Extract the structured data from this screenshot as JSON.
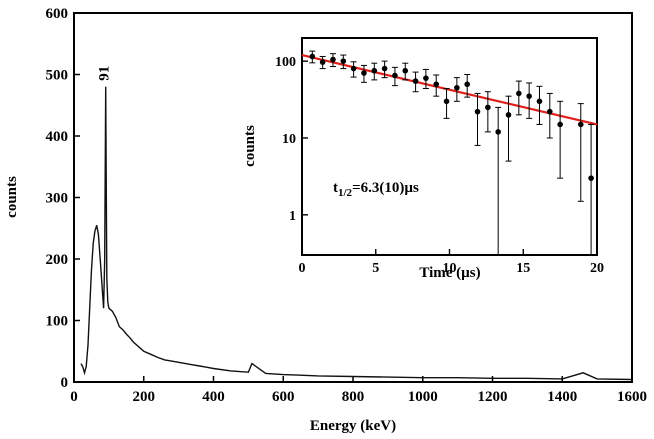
{
  "chart_data": [
    {
      "type": "line",
      "title": "",
      "xlabel": "Energy (keV)",
      "ylabel": "counts",
      "xlim": [
        0,
        1600
      ],
      "ylim": [
        0,
        600
      ],
      "x_ticks": [
        "0",
        "200",
        "400",
        "600",
        "800",
        "1000",
        "1200",
        "1400",
        "1600"
      ],
      "y_ticks": [
        "0",
        "100",
        "200",
        "300",
        "400",
        "500",
        "600"
      ],
      "grid": false,
      "annotations": [
        {
          "text": "91",
          "x": 91,
          "y": 480
        }
      ],
      "series": [
        {
          "x": [
            20,
            25,
            30,
            35,
            40,
            45,
            50,
            55,
            60,
            65,
            70,
            75,
            80,
            85,
            88,
            91,
            94,
            97,
            100,
            110,
            120,
            130,
            140,
            150,
            160,
            170,
            180,
            190,
            200,
            220,
            240,
            260,
            280,
            300,
            320,
            340,
            360,
            380,
            400,
            450,
            500,
            510,
            550,
            600,
            650,
            700,
            800,
            900,
            1000,
            1100,
            1200,
            1300,
            1400,
            1460,
            1500,
            1600
          ],
          "y": [
            30,
            25,
            15,
            25,
            60,
            120,
            180,
            225,
            245,
            255,
            240,
            200,
            160,
            120,
            200,
            480,
            170,
            130,
            120,
            115,
            105,
            90,
            85,
            78,
            72,
            65,
            60,
            55,
            50,
            45,
            40,
            36,
            34,
            32,
            30,
            28,
            26,
            24,
            22,
            18,
            16,
            30,
            14,
            12,
            11,
            10,
            9,
            8,
            7,
            7,
            6,
            6,
            5,
            15,
            5,
            4
          ]
        }
      ]
    },
    {
      "type": "scatter",
      "title": "",
      "xlabel": "Time (µs)",
      "ylabel": "counts",
      "xlim": [
        0,
        20
      ],
      "ylim": [
        0.3,
        200
      ],
      "yscale": "log",
      "x_ticks": [
        "0",
        "5",
        "10",
        "15",
        "20"
      ],
      "y_ticks": [
        "1",
        "10",
        "100"
      ],
      "annotation": "t",
      "annotation_sub": "1/2",
      "annotation_rest": "=6.3(10)µs",
      "fit_line": {
        "x": [
          0,
          20
        ],
        "y": [
          120,
          15
        ],
        "color": "#e0201b"
      },
      "points": [
        {
          "x": 0.7,
          "y": 115,
          "lo": 95,
          "hi": 135
        },
        {
          "x": 1.4,
          "y": 97,
          "lo": 80,
          "hi": 115
        },
        {
          "x": 2.1,
          "y": 105,
          "lo": 85,
          "hi": 125
        },
        {
          "x": 2.8,
          "y": 100,
          "lo": 80,
          "hi": 120
        },
        {
          "x": 3.5,
          "y": 80,
          "lo": 62,
          "hi": 98
        },
        {
          "x": 4.2,
          "y": 70,
          "lo": 53,
          "hi": 88
        },
        {
          "x": 4.9,
          "y": 75,
          "lo": 57,
          "hi": 94
        },
        {
          "x": 5.6,
          "y": 80,
          "lo": 61,
          "hi": 100
        },
        {
          "x": 6.3,
          "y": 65,
          "lo": 48,
          "hi": 83
        },
        {
          "x": 7.0,
          "y": 75,
          "lo": 57,
          "hi": 94
        },
        {
          "x": 7.7,
          "y": 55,
          "lo": 40,
          "hi": 72
        },
        {
          "x": 8.4,
          "y": 60,
          "lo": 44,
          "hi": 78
        },
        {
          "x": 9.1,
          "y": 50,
          "lo": 35,
          "hi": 66
        },
        {
          "x": 9.8,
          "y": 30,
          "lo": 18,
          "hi": 44
        },
        {
          "x": 10.5,
          "y": 45,
          "lo": 30,
          "hi": 61
        },
        {
          "x": 11.2,
          "y": 50,
          "lo": 34,
          "hi": 67
        },
        {
          "x": 11.9,
          "y": 22,
          "lo": 8,
          "hi": 38
        },
        {
          "x": 12.6,
          "y": 25,
          "lo": 12,
          "hi": 40
        },
        {
          "x": 13.3,
          "y": 12,
          "lo": 0.3,
          "hi": 25
        },
        {
          "x": 14.0,
          "y": 20,
          "lo": 5,
          "hi": 35
        },
        {
          "x": 14.7,
          "y": 38,
          "lo": 20,
          "hi": 55
        },
        {
          "x": 15.4,
          "y": 35,
          "lo": 18,
          "hi": 52
        },
        {
          "x": 16.1,
          "y": 30,
          "lo": 15,
          "hi": 47
        },
        {
          "x": 16.8,
          "y": 22,
          "lo": 10,
          "hi": 38
        },
        {
          "x": 17.5,
          "y": 15,
          "lo": 3,
          "hi": 30
        },
        {
          "x": 18.9,
          "y": 15,
          "lo": 1.5,
          "hi": 28
        },
        {
          "x": 19.6,
          "y": 3,
          "lo": 0.3,
          "hi": 15
        }
      ]
    }
  ]
}
